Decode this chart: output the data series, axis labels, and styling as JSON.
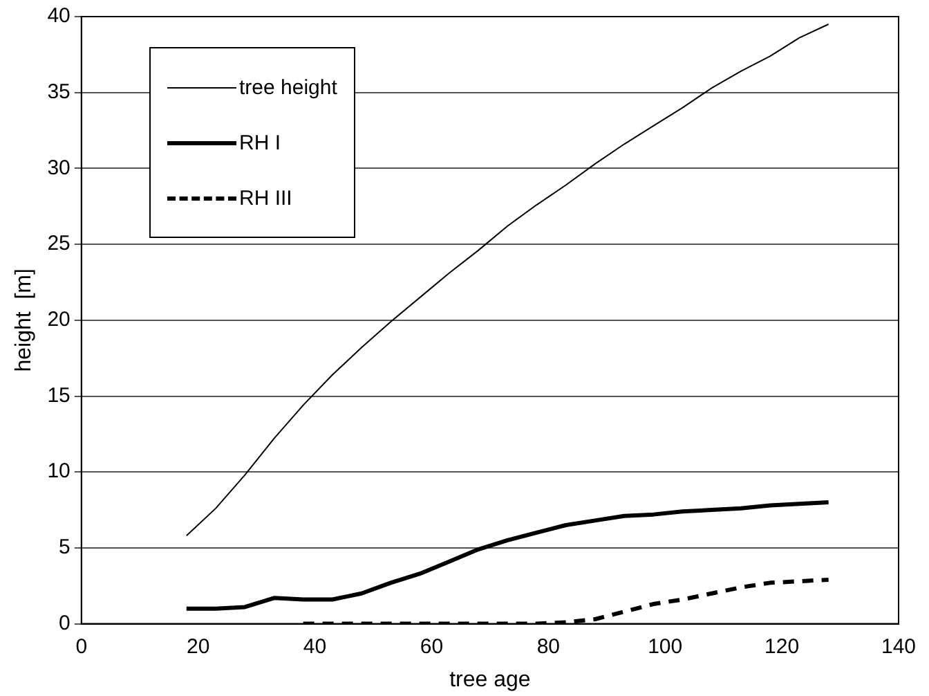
{
  "chart_data": {
    "type": "line",
    "xlabel": "tree age",
    "ylabel": "height  [m]",
    "xlim": [
      0,
      140
    ],
    "xticks": [
      0,
      20,
      40,
      60,
      80,
      100,
      120,
      140
    ],
    "ylim": [
      0,
      40
    ],
    "yticks": [
      0,
      5,
      10,
      15,
      20,
      25,
      30,
      35,
      40
    ],
    "grid": "y",
    "legend": "top left",
    "marker": "none",
    "series": [
      {
        "name": "tree height",
        "color": "#000000",
        "line_style": "solid",
        "x": [
          18,
          23,
          28,
          33,
          38,
          43,
          48,
          53,
          58,
          63,
          68,
          73,
          78,
          83,
          88,
          93,
          98,
          103,
          108,
          113,
          118,
          123,
          128
        ],
        "values": [
          5.8,
          7.6,
          9.8,
          12.2,
          14.4,
          16.4,
          18.2,
          19.9,
          21.5,
          23.1,
          24.6,
          26.2,
          27.6,
          28.9,
          30.3,
          31.6,
          32.8,
          34.0,
          35.3,
          36.4,
          37.4,
          38.6,
          39.5
        ]
      },
      {
        "name": "RH I",
        "color": "#000000",
        "line_style": "solid",
        "x": [
          18,
          23,
          28,
          33,
          38,
          43,
          48,
          53,
          58,
          63,
          68,
          73,
          78,
          83,
          88,
          93,
          98,
          103,
          108,
          113,
          118,
          123,
          128
        ],
        "values": [
          1.0,
          1.0,
          1.1,
          1.7,
          1.6,
          1.6,
          2.0,
          2.7,
          3.3,
          4.1,
          4.9,
          5.5,
          6.0,
          6.5,
          6.8,
          7.1,
          7.2,
          7.4,
          7.5,
          7.6,
          7.8,
          7.9,
          8.0
        ]
      },
      {
        "name": "RH III",
        "color": "#000000",
        "line_style": "dashed",
        "x": [
          38,
          43,
          48,
          53,
          58,
          63,
          68,
          73,
          78,
          83,
          88,
          93,
          98,
          103,
          108,
          113,
          118,
          123,
          128
        ],
        "values": [
          0,
          0,
          0,
          0,
          0,
          0,
          0,
          0,
          0,
          0.1,
          0.3,
          0.8,
          1.3,
          1.6,
          2.0,
          2.4,
          2.7,
          2.8,
          2.9
        ]
      }
    ]
  }
}
